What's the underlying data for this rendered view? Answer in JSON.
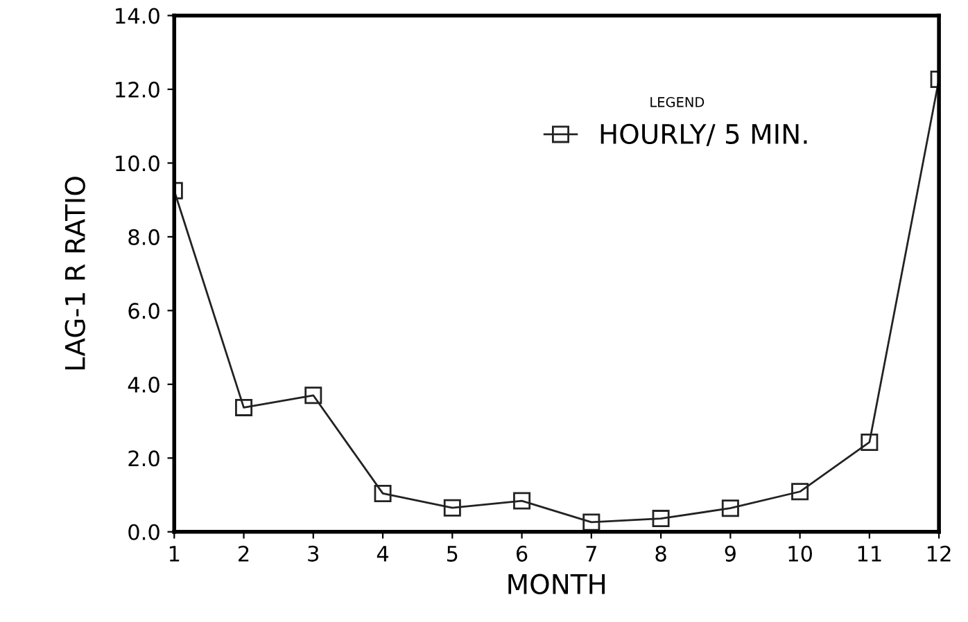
{
  "chart_data": {
    "type": "line",
    "xlabel": "MONTH",
    "ylabel": "LAG-1 R RATIO",
    "legend_title": "LEGEND",
    "x": [
      1,
      2,
      3,
      4,
      5,
      6,
      7,
      8,
      9,
      10,
      11,
      12
    ],
    "series": [
      {
        "name": "HOURLY/ 5 MIN.",
        "color": "#222222",
        "values": [
          9.25,
          3.37,
          3.7,
          1.04,
          0.65,
          0.84,
          0.26,
          0.36,
          0.64,
          1.09,
          2.43,
          12.27
        ]
      }
    ],
    "xlim": [
      1,
      12
    ],
    "xticks": [
      1,
      2,
      3,
      4,
      5,
      6,
      7,
      8,
      9,
      10,
      11,
      12
    ],
    "ylim": [
      0,
      14
    ],
    "yticks": [
      {
        "value": 0,
        "label": "0.0"
      },
      {
        "value": 2,
        "label": "2.0"
      },
      {
        "value": 4,
        "label": "4.0"
      },
      {
        "value": 6,
        "label": "6.0"
      },
      {
        "value": 8,
        "label": "8.0"
      },
      {
        "value": 10,
        "label": "10.0"
      },
      {
        "value": 12,
        "label": "12.0"
      },
      {
        "value": 14,
        "label": "14.0"
      }
    ],
    "marker": "square",
    "line_style": "solid",
    "grid": false,
    "legend": "top right"
  }
}
